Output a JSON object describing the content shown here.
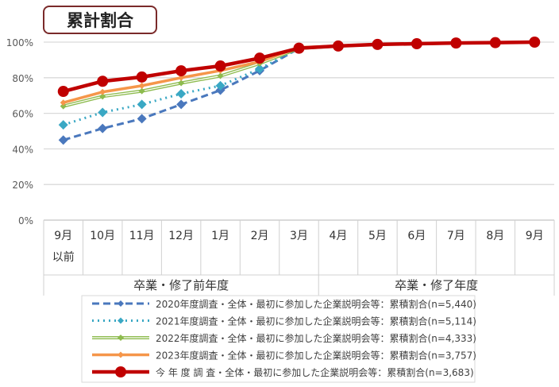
{
  "chart_data": {
    "type": "line",
    "title": "累計割合",
    "ylim": [
      0,
      100
    ],
    "yticks": [
      "0%",
      "20%",
      "40%",
      "60%",
      "80%",
      "100%"
    ],
    "categories": [
      "9月\n以前",
      "10月",
      "11月",
      "12月",
      "1月",
      "2月",
      "3月",
      "4月",
      "5月",
      "6月",
      "7月",
      "8月",
      "9月"
    ],
    "groups": [
      {
        "label": "卒業・修了前年度",
        "span": 7
      },
      {
        "label": "卒業・修了年度",
        "span": 6
      }
    ],
    "grid": true,
    "legend_position": "bottom",
    "series": [
      {
        "name": "2020年度調査・全体・最初に参加した企業説明会等：累積割合(n=5,440)",
        "color": "#4a78bd",
        "style": "dashed",
        "marker": "diamond",
        "values": [
          45,
          51.5,
          57,
          65,
          73,
          84,
          96.5,
          97.8,
          98.7,
          99.1,
          99.5,
          99.7,
          100
        ]
      },
      {
        "name": "2021年度調査・全体・最初に参加した企業説明会等：累積割合(n=5,114)",
        "color": "#3aa8c4",
        "style": "dotted",
        "marker": "diamond",
        "values": [
          53.5,
          60.5,
          65,
          71,
          75.5,
          85,
          96.5,
          97.8,
          98.7,
          99.1,
          99.5,
          99.7,
          100
        ]
      },
      {
        "name": "2022年度調査・全体・最初に参加した企業説明会等：累積割合(n=4,333)",
        "color": "#8dbb4e",
        "style": "double",
        "marker": "diamond",
        "values": [
          64,
          69.5,
          72.5,
          77,
          81,
          88,
          96.5,
          97.8,
          98.7,
          99.1,
          99.5,
          99.7,
          100
        ]
      },
      {
        "name": "2023年度調査・全体・最初に参加した企業説明会等：累積割合(n=3,757)",
        "color": "#f5964a",
        "style": "solid",
        "marker": "diamond",
        "values": [
          66,
          72,
          75.5,
          80,
          84,
          89,
          97,
          97.8,
          98.7,
          99.1,
          99.5,
          99.7,
          100
        ]
      },
      {
        "name": "今 年 度 調 査・全体・最初に参加した企業説明会等：累積割合(n=3,683)",
        "color": "#c00000",
        "style": "thick",
        "marker": "circle",
        "values": [
          72.3,
          78,
          80.4,
          83.9,
          86.6,
          91,
          96.6,
          97.8,
          98.7,
          99.1,
          99.5,
          99.7,
          100
        ]
      }
    ]
  }
}
